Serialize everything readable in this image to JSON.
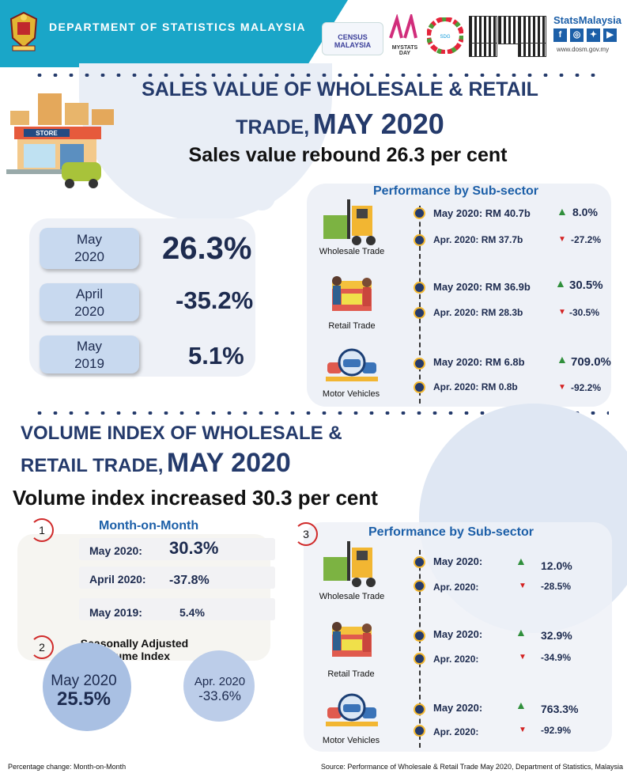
{
  "header": {
    "department": "DEPARTMENT OF STATISTICS MALAYSIA",
    "census_logo": "CENSUS MALAYSIA",
    "mystats_logo": "MYSTATS DAY",
    "sdg_logo": "SUSTAINABLE DEVELOPMENT GOALS MALAYSIA",
    "stats_title": "StatsMalaysia",
    "social": [
      "f",
      "ig",
      "tw",
      "yt"
    ],
    "url": "www.dosm.gov.my"
  },
  "sales": {
    "title_line1": "SALES VALUE OF WHOLESALE & RETAIL",
    "title_line2_prefix": "TRADE,",
    "title_line2_big": "MAY 2020",
    "subtitle": "Sales value rebound 26.3 per cent",
    "store_label": "STORE",
    "periods": [
      {
        "line1": "May",
        "line2": "2020",
        "value": "26.3%"
      },
      {
        "line1": "April",
        "line2": "2020",
        "value": "-35.2%"
      },
      {
        "line1": "May",
        "line2": "2019",
        "value": "5.1%"
      }
    ],
    "perf_title": "Performance by Sub-sector",
    "subsectors": [
      {
        "name": "Wholesale Trade",
        "current": "May 2020: RM 40.7b",
        "current_pct": "8.0%",
        "prev": "Apr. 2020: RM 37.7b",
        "prev_pct": "-27.2%"
      },
      {
        "name": "Retail Trade",
        "current": "May 2020: RM 36.9b",
        "current_pct": "30.5%",
        "prev": "Apr. 2020: RM 28.3b",
        "prev_pct": "-30.5%"
      },
      {
        "name": "Motor Vehicles",
        "current": "May 2020: RM 6.8b",
        "current_pct": "709.0%",
        "prev": "Apr. 2020: RM 0.8b",
        "prev_pct": "-92.2%"
      }
    ]
  },
  "volume": {
    "title_line1": "VOLUME INDEX OF WHOLESALE &",
    "title_line2_prefix": "RETAIL TRADE,",
    "title_line2_big": "MAY 2020",
    "subtitle": "Volume index increased 30.3 per cent",
    "mom": {
      "number": "1",
      "title": "Month-on-Month",
      "rows": [
        {
          "label": "May 2020:",
          "value": "30.3%"
        },
        {
          "label": "April 2020:",
          "value": "-37.8%"
        },
        {
          "label": "May 2019:",
          "value": "5.4%"
        }
      ]
    },
    "sa": {
      "number": "2",
      "title_line1": "Seasonally Adjusted",
      "title_line2": "Volume Index",
      "may_label": "May 2020",
      "may_value": "25.5%",
      "apr_label": "Apr. 2020",
      "apr_value": "-33.6%"
    },
    "perf": {
      "number": "3",
      "title": "Performance by Sub-sector",
      "subsectors": [
        {
          "name": "Wholesale Trade",
          "current": "May 2020:",
          "current_pct": "12.0%",
          "prev": "Apr. 2020:",
          "prev_pct": "-28.5%"
        },
        {
          "name": "Retail Trade",
          "current": "May 2020:",
          "current_pct": "32.9%",
          "prev": "Apr. 2020:",
          "prev_pct": "-34.9%"
        },
        {
          "name": "Motor Vehicles",
          "current": "May 2020:",
          "current_pct": "763.3%",
          "prev": "Apr. 2020:",
          "prev_pct": "-92.9%"
        }
      ]
    }
  },
  "footer": {
    "left": "Percentage change: Month-on-Month",
    "right": "Source: Performance of Wholesale & Retail Trade May 2020, Department of Statistics, Malaysia"
  },
  "colors": {
    "header_band": "#1aa6c8",
    "navy": "#243a6b",
    "accent_blue": "#1c5fa8",
    "up": "#2f8f3b",
    "down": "#d32020"
  }
}
